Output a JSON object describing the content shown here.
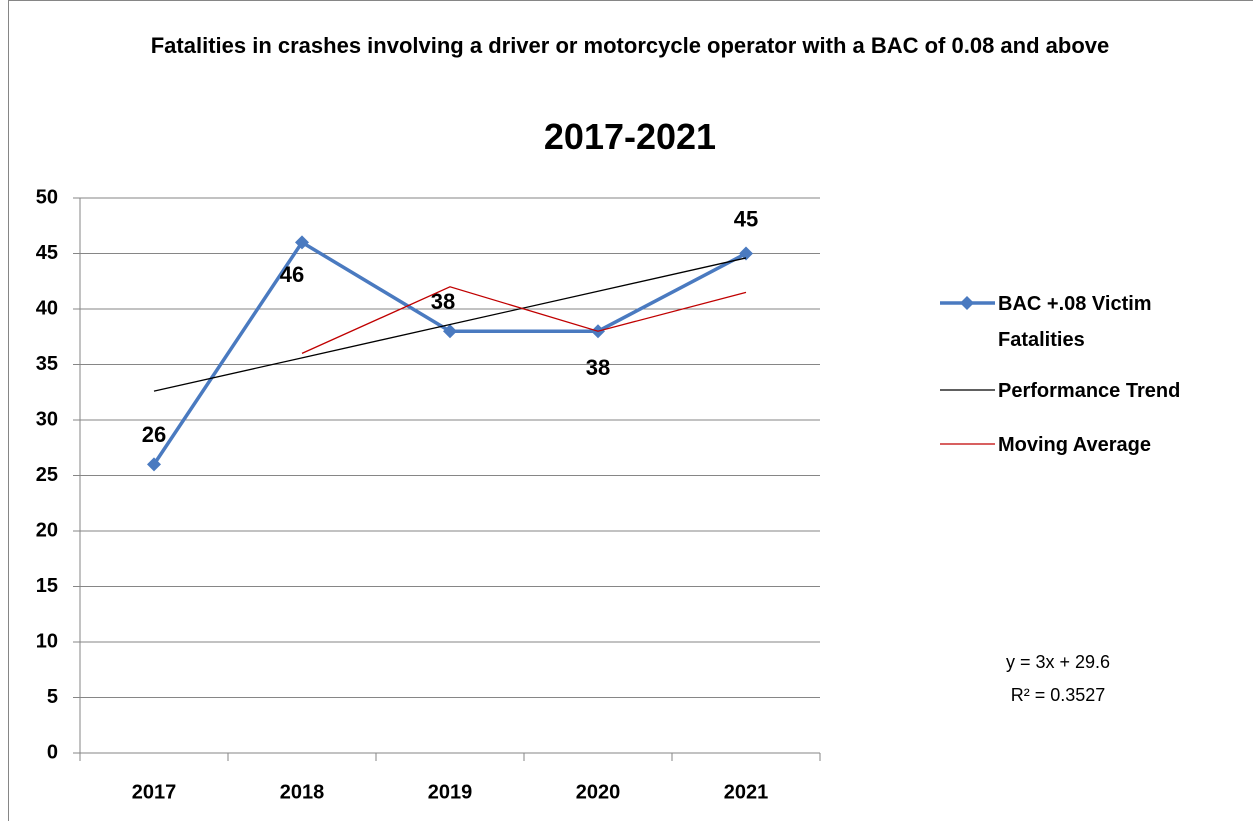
{
  "chart_data": {
    "type": "line",
    "title": "Fatalities in crashes involving a driver or motorcycle operator with a BAC of 0.08 and above",
    "subtitle": "2017-2021",
    "categories": [
      "2017",
      "2018",
      "2019",
      "2020",
      "2021"
    ],
    "series": [
      {
        "name": "BAC +.08 Victim Fatalities",
        "color": "#4a7ac0",
        "values": [
          26,
          46,
          38,
          38,
          45
        ],
        "markers": true,
        "data_labels": true
      },
      {
        "name": "Performance Trend",
        "color": "#000000",
        "values": [
          32.6,
          35.6,
          38.6,
          41.6,
          44.6
        ]
      },
      {
        "name": "Moving Average",
        "color": "#c00000",
        "values": [
          null,
          36,
          42,
          38,
          41.5
        ]
      }
    ],
    "annotations": [
      "y = 3x + 29.6",
      "R² = 0.3527"
    ],
    "ylim": [
      0,
      50
    ],
    "yticks": [
      0,
      5,
      10,
      15,
      20,
      25,
      30,
      35,
      40,
      45,
      50
    ],
    "grid": true,
    "legend": "right"
  }
}
